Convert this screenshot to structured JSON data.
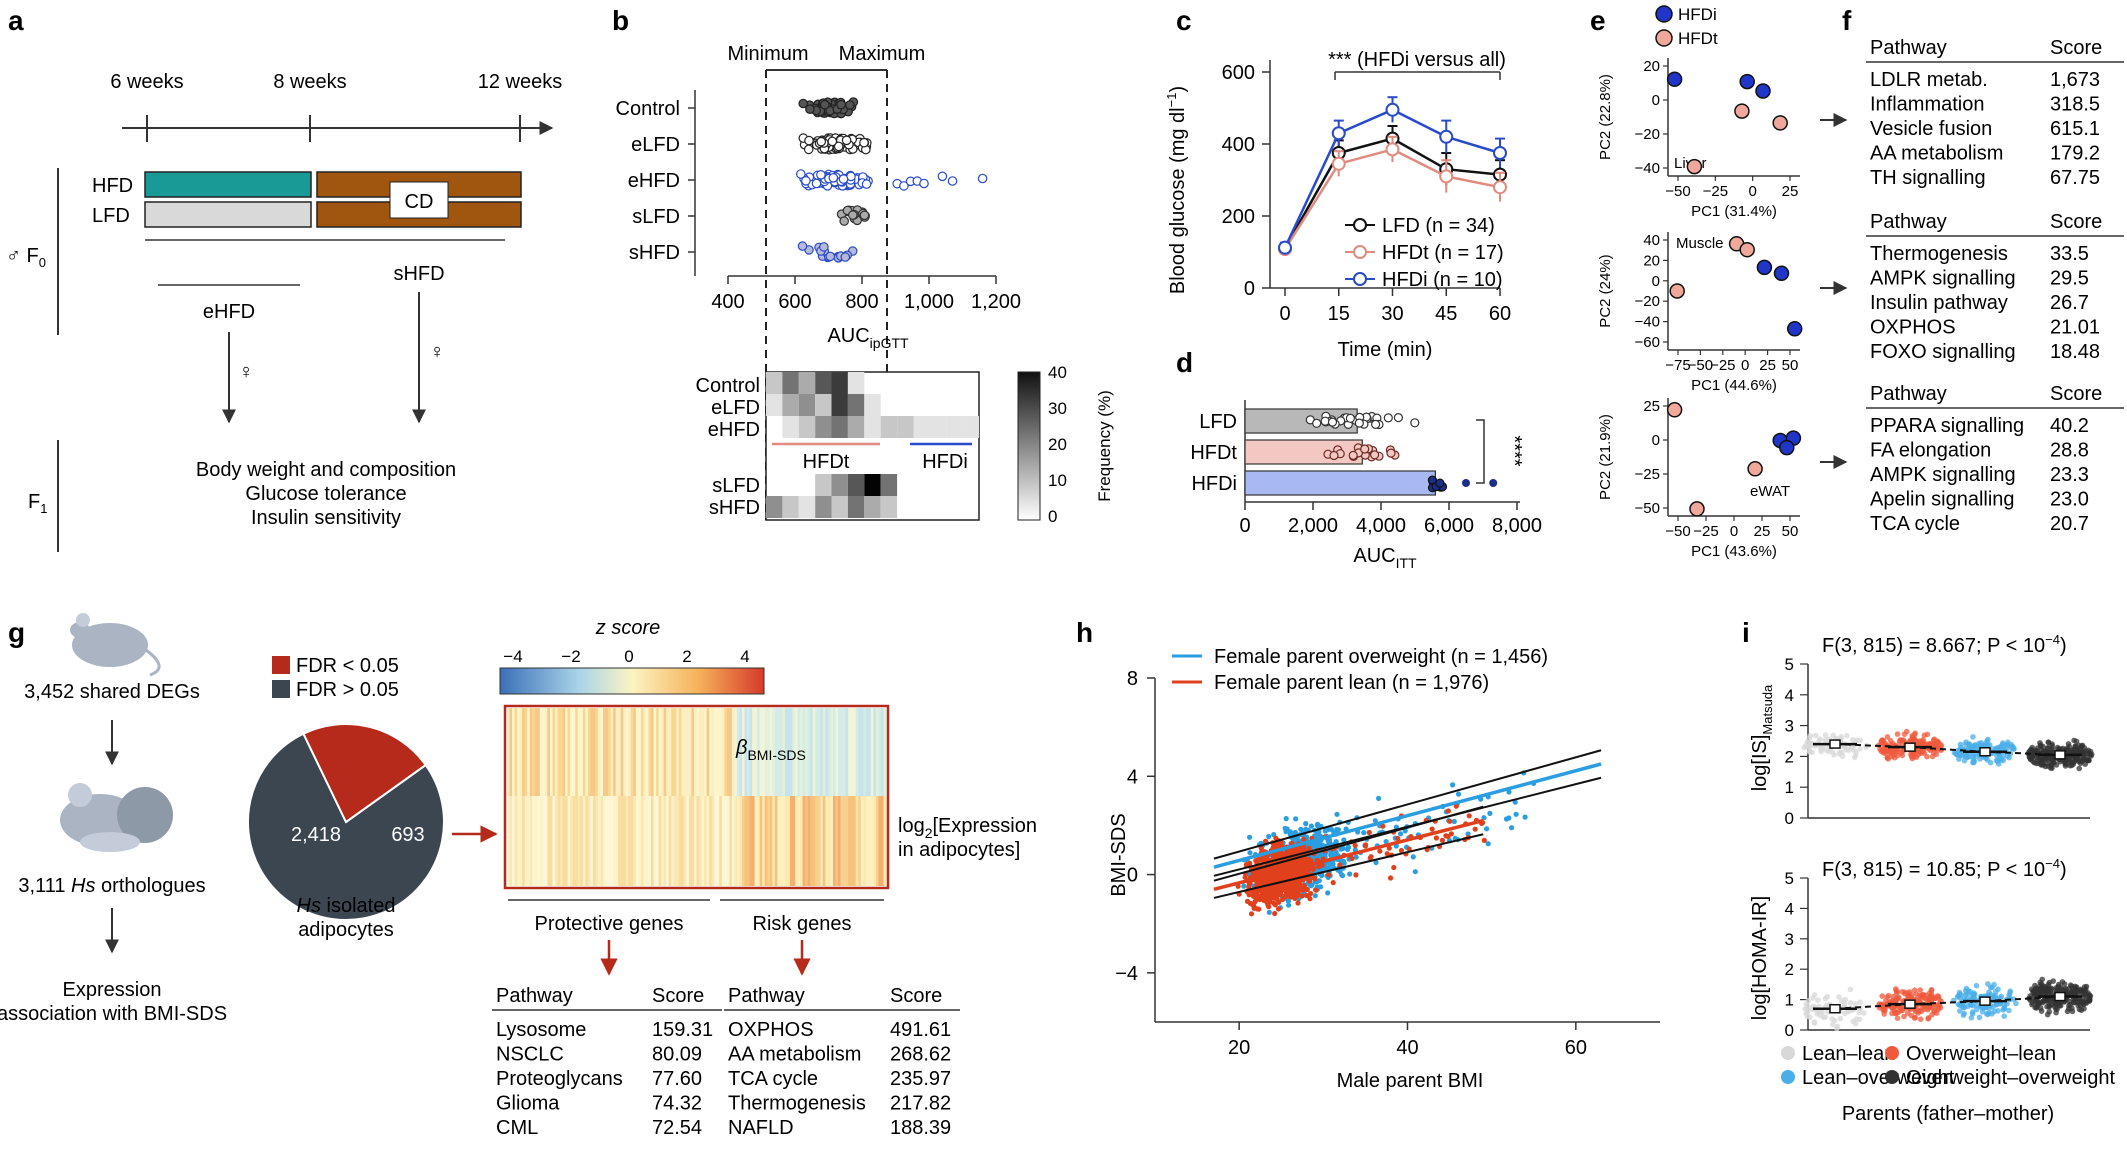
{
  "panel_labels": [
    "a",
    "b",
    "c",
    "d",
    "e",
    "f",
    "g",
    "h",
    "i"
  ],
  "a": {
    "timeline": [
      "6 weeks",
      "8 weeks",
      "12 weeks"
    ],
    "hfd": "HFD",
    "lfd": "LFD",
    "cd": "CD",
    "f0": "♂ F",
    "f0_sub": "0",
    "f1": "F",
    "f1_sub": "1",
    "ehfd": "eHFD",
    "shfd": "sHFD",
    "female": "♀",
    "outcomes": [
      "Body weight and composition",
      "Glucose tolerance",
      "Insulin sensitivity"
    ],
    "colors": {
      "hfd": "#1a9a96",
      "lfd": "#d9d9d9",
      "cd": "#a0560f"
    }
  },
  "b": {
    "minimum": "Minimum",
    "maximum": "Maximum",
    "groups": [
      "Control",
      "eLFD",
      "eHFD",
      "sLFD",
      "sHFD"
    ],
    "xticks": [
      "400",
      "600",
      "800",
      "1,000",
      "1,200"
    ],
    "xlabel": "AUC",
    "xlabel_sub": "ipGTT",
    "heat_rows": [
      "Control",
      "eLFD",
      "eHFD",
      "sLFD",
      "sHFD"
    ],
    "hfdt": "HFDt",
    "hfdi": "HFDi",
    "colorbar_ticks": [
      "40",
      "30",
      "20",
      "10",
      "0"
    ],
    "colorbar_label": "Frequency (%)"
  },
  "c": {
    "ylabel": "Blood glucose (mg dl",
    "ylabel_sup": "−1",
    "ylabel_end": ")",
    "xlabel": "Time (min)",
    "yticks": [
      "0",
      "200",
      "400",
      "600"
    ],
    "xticks": [
      "0",
      "15",
      "30",
      "45",
      "60"
    ],
    "annotation": "*** (HFDi versus all)",
    "legend": [
      "LFD (n = 34)",
      "HFDt (n = 17)",
      "HFDi (n = 10)"
    ],
    "chart_data": {
      "type": "line",
      "x": [
        0,
        15,
        30,
        45,
        60
      ],
      "series": [
        {
          "name": "LFD (n = 34)",
          "values": [
            110,
            375,
            415,
            330,
            315
          ],
          "color": "#111111"
        },
        {
          "name": "HFDt (n = 17)",
          "values": [
            108,
            345,
            385,
            310,
            280
          ],
          "color": "#e08b80"
        },
        {
          "name": "HFDi (n = 10)",
          "values": [
            112,
            430,
            495,
            420,
            375
          ],
          "color": "#2a4bc8"
        }
      ],
      "ylim": [
        0,
        600
      ]
    }
  },
  "d": {
    "categories": [
      "LFD",
      "HFDt",
      "HFDi"
    ],
    "xticks": [
      "0",
      "2,000",
      "4,000",
      "6,000",
      "8,000"
    ],
    "xlabel": "AUC",
    "xlabel_sub": "ITT",
    "stars": "****",
    "chart_data": {
      "type": "bar",
      "categories": [
        "LFD",
        "HFDt",
        "HFDi"
      ],
      "values": [
        3300,
        3450,
        5600
      ],
      "xlim": [
        0,
        8000
      ],
      "colors": [
        "#b8b8b8",
        "#f4c8c2",
        "#a8b8f0"
      ]
    }
  },
  "e": {
    "legend": [
      "HFDi",
      "HFDt"
    ],
    "plots": [
      {
        "tissue": "Liver",
        "ylabel": "PC2 (22.8%)",
        "xlabel": "PC1 (31.4%)",
        "yticks": [
          "20",
          "0",
          "−20",
          "−40"
        ],
        "xticks": [
          "−50",
          "−25",
          "0",
          "25"
        ]
      },
      {
        "tissue": "Muscle",
        "ylabel": "PC2 (24%)",
        "xlabel": "PC1 (44.6%)",
        "yticks": [
          "40",
          "20",
          "0",
          "−20",
          "−40",
          "−60"
        ],
        "xticks": [
          "−75",
          "−50",
          "−25",
          "0",
          "25",
          "50"
        ]
      },
      {
        "tissue": "eWAT",
        "ylabel": "PC2 (21.9%)",
        "xlabel": "PC1 (43.6%)",
        "yticks": [
          "25",
          "0",
          "−25",
          "−50"
        ],
        "xticks": [
          "−50",
          "−25",
          "0",
          "25",
          "50"
        ]
      }
    ]
  },
  "f": {
    "header": [
      "Pathway",
      "Score"
    ],
    "tables": [
      [
        [
          "LDLR metab.",
          "1,673"
        ],
        [
          "Inflammation",
          "318.5"
        ],
        [
          "Vesicle fusion",
          "615.1"
        ],
        [
          "AA metabolism",
          "179.2"
        ],
        [
          "TH signalling",
          "67.75"
        ]
      ],
      [
        [
          "Thermogenesis",
          "33.5"
        ],
        [
          "AMPK signalling",
          "29.5"
        ],
        [
          "Insulin pathway",
          "26.7"
        ],
        [
          "OXPHOS",
          "21.01"
        ],
        [
          "FOXO signalling",
          "18.48"
        ]
      ],
      [
        [
          "PPARA signalling",
          "40.2"
        ],
        [
          "FA elongation",
          "28.8"
        ],
        [
          "AMPK signalling",
          "23.3"
        ],
        [
          "Apelin signalling",
          "23.0"
        ],
        [
          "TCA cycle",
          "20.7"
        ]
      ]
    ]
  },
  "g": {
    "shared_degs": "3,452 shared DEGs",
    "orthologues_num": "3,111 ",
    "orthologues_hs": "Hs",
    "orthologues_rest": " orthologues",
    "expression": [
      "Expression",
      "association with BMI-SDS"
    ],
    "fdr_legend": [
      "FDR < 0.05",
      "FDR > 0.05"
    ],
    "pie_values": [
      "2,418",
      "693"
    ],
    "pie_caption_hs": "Hs",
    "pie_caption_rest": " isolated",
    "pie_caption2": "adipocytes",
    "zscore": "z score",
    "zticks": [
      "−4",
      "−2",
      "0",
      "2",
      "4"
    ],
    "beta": "β",
    "beta_sub": "BMI-SDS",
    "log2_1": "log",
    "log2_sub": "2",
    "log2_2": "[Expression",
    "log2_3": "in adipocytes]",
    "protective": "Protective genes",
    "risk": "Risk genes",
    "header": [
      "Pathway",
      "Score"
    ],
    "protective_table": [
      [
        "Lysosome",
        "159.31"
      ],
      [
        "NSCLC",
        "80.09"
      ],
      [
        "Proteoglycans",
        "77.60"
      ],
      [
        "Glioma",
        "74.32"
      ],
      [
        "CML",
        "72.54"
      ]
    ],
    "risk_table": [
      [
        "OXPHOS",
        "491.61"
      ],
      [
        "AA metabolism",
        "268.62"
      ],
      [
        "TCA cycle",
        "235.97"
      ],
      [
        "Thermogenesis",
        "217.82"
      ],
      [
        "NAFLD",
        "188.39"
      ]
    ],
    "chart_data": {
      "type": "pie",
      "categories": [
        "FDR > 0.05",
        "FDR < 0.05"
      ],
      "values": [
        2418,
        693
      ],
      "colors": [
        "#3b4650",
        "#b52a1b"
      ]
    }
  },
  "h": {
    "legend": [
      "Female parent overweight (n = 1,456)",
      "Female parent lean (n = 1,976)"
    ],
    "ylabel": "BMI-SDS",
    "xlabel": "Male parent BMI",
    "yticks": [
      "8",
      "4",
      "0",
      "−4"
    ],
    "xticks": [
      "20",
      "40",
      "60"
    ],
    "chart_data": {
      "type": "scatter",
      "series": [
        {
          "name": "Female parent overweight (n = 1,456)",
          "n": 1456,
          "color": "#2a9ee0",
          "fit": [
            [
              17,
              0.3
            ],
            [
              63,
              4.5
            ]
          ]
        },
        {
          "name": "Female parent lean (n = 1,976)",
          "n": 1976,
          "color": "#e0401c",
          "fit": [
            [
              17,
              -0.6
            ],
            [
              49,
              2.2
            ]
          ]
        }
      ],
      "xlim": [
        10,
        70
      ],
      "ylim": [
        -6,
        8
      ]
    }
  },
  "i": {
    "stat1": "F(3, 815) = 8.667; P < 10",
    "stat1_sup": "−4",
    "stat2": "F(3, 815) = 10.85; P < 10",
    "stat2_sup": "−4",
    "ylabel1": "log[IS]",
    "ylabel1_sub": "Matsuda",
    "ylabel2": "log[HOMA-IR]",
    "yticks1": [
      "5",
      "4",
      "3",
      "2",
      "1",
      "0"
    ],
    "yticks2": [
      "5",
      "4",
      "3",
      "2",
      "1",
      "0"
    ],
    "legend": [
      "Lean–lean",
      "Overweight–lean",
      "Lean–overweight",
      "Overweight–overweight"
    ],
    "xlabel": "Parents (father–mother)",
    "colors": [
      "#d8d8d8",
      "#ef5a3c",
      "#4aaee8",
      "#333333"
    ],
    "chart_data": [
      {
        "type": "scatter",
        "categories": [
          "Lean–lean",
          "Overweight–lean",
          "Lean–overweight",
          "Overweight–overweight"
        ],
        "values": [
          2.4,
          2.3,
          2.15,
          2.05
        ],
        "ylim": [
          0,
          5
        ]
      },
      {
        "type": "scatter",
        "categories": [
          "Lean–lean",
          "Overweight–lean",
          "Lean–overweight",
          "Overweight–overweight"
        ],
        "values": [
          0.7,
          0.85,
          0.95,
          1.1
        ],
        "ylim": [
          0,
          5
        ]
      }
    ]
  }
}
